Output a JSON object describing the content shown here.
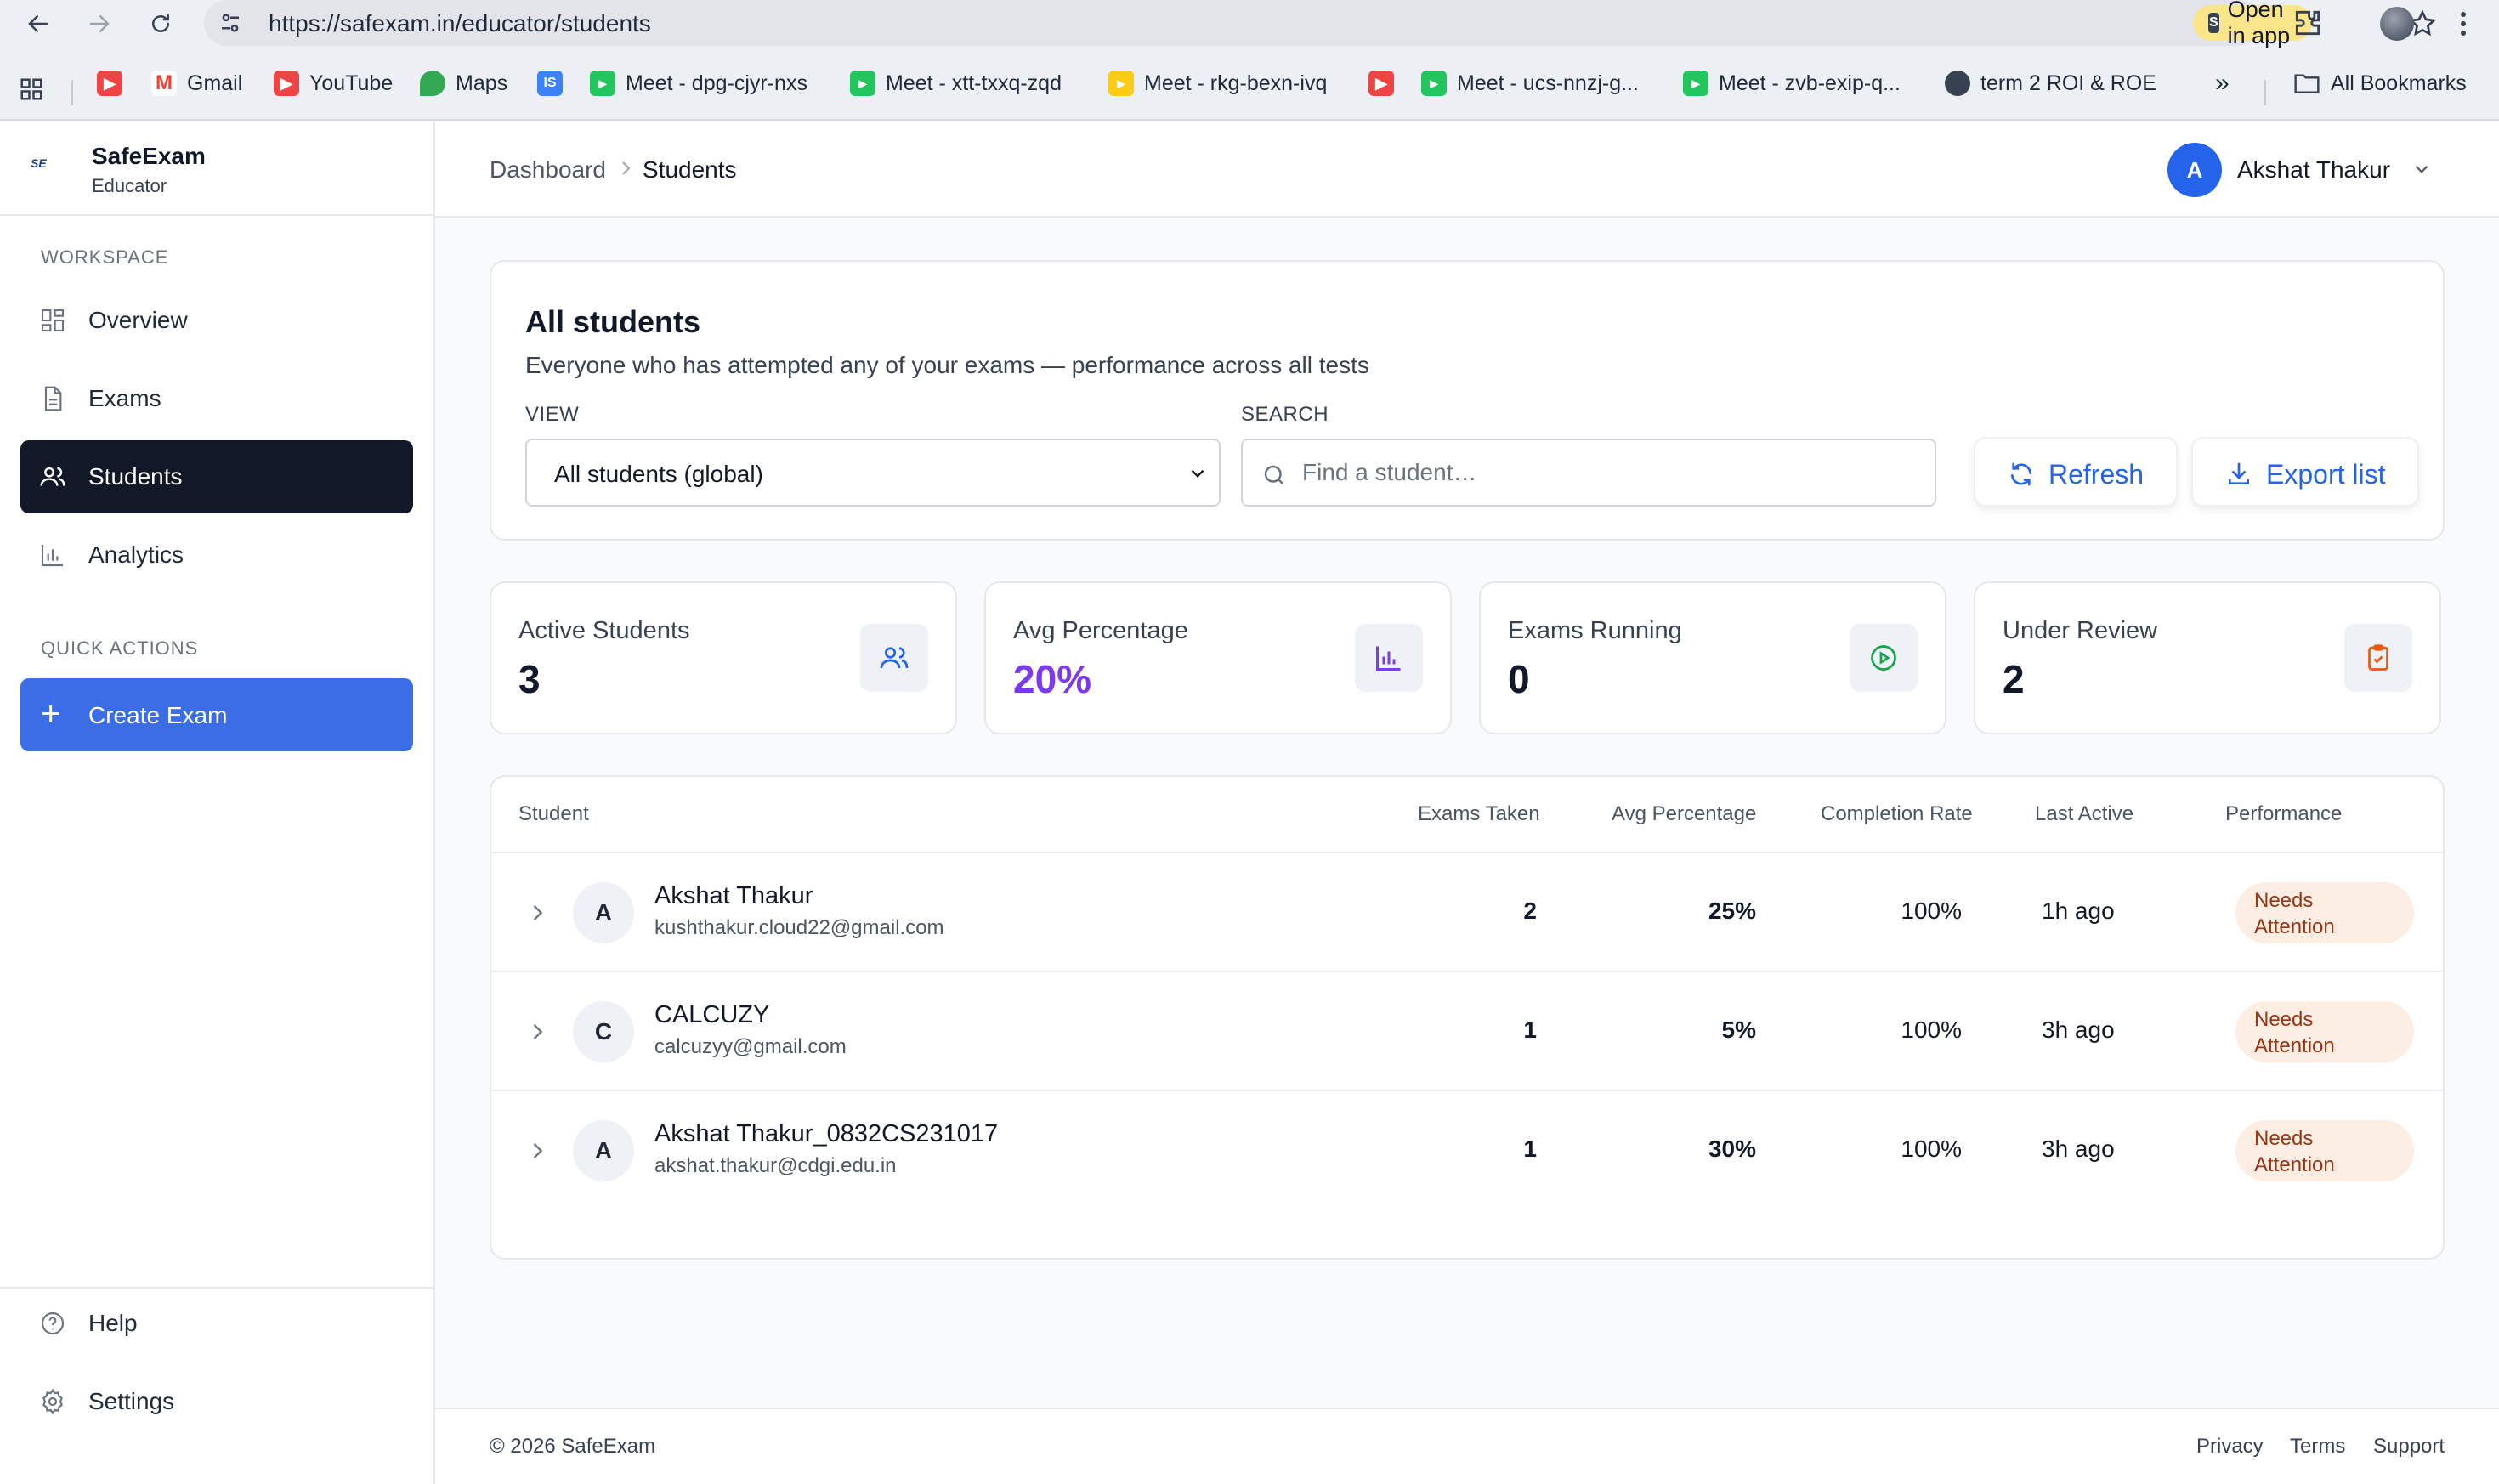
{
  "browser": {
    "url": "https://safexam.in/educator/students",
    "open_in_app": "Open in app",
    "bookmarks": [
      {
        "label": ""
      },
      {
        "label": "Gmail"
      },
      {
        "label": "YouTube"
      },
      {
        "label": "Maps"
      },
      {
        "label": ""
      },
      {
        "label": "Meet - dpg-cjyr-nxs"
      },
      {
        "label": "Meet - xtt-txxq-zqd"
      },
      {
        "label": "Meet - rkg-bexn-ivq"
      },
      {
        "label": ""
      },
      {
        "label": "Meet - ucs-nnzj-g..."
      },
      {
        "label": "Meet - zvb-exip-q..."
      },
      {
        "label": "term 2 ROI & ROE"
      }
    ],
    "all_bookmarks": "All Bookmarks"
  },
  "sidebar": {
    "brand": "SafeExam",
    "role": "Educator",
    "workspace_label": "WORKSPACE",
    "items": [
      {
        "label": "Overview",
        "icon": "grid-icon"
      },
      {
        "label": "Exams",
        "icon": "document-icon"
      },
      {
        "label": "Students",
        "icon": "users-icon",
        "active": true
      },
      {
        "label": "Analytics",
        "icon": "bar-chart-icon"
      }
    ],
    "quick_actions_label": "QUICK ACTIONS",
    "create_exam": "Create Exam",
    "help": "Help",
    "settings": "Settings"
  },
  "header": {
    "breadcrumb": [
      "Dashboard",
      "Students"
    ],
    "user_initial": "A",
    "user_name": "Akshat Thakur"
  },
  "filters": {
    "title": "All students",
    "subtitle": "Everyone who has attempted any of your exams — performance across all tests",
    "view_label": "VIEW",
    "view_value": "All students (global)",
    "search_label": "SEARCH",
    "search_placeholder": "Find a student…",
    "refresh": "Refresh",
    "export": "Export list"
  },
  "stats": [
    {
      "label": "Active Students",
      "value": "3",
      "icon": "users-icon",
      "icon_color": "#2563eb"
    },
    {
      "label": "Avg Percentage",
      "value": "20%",
      "icon": "bar-chart-icon",
      "icon_color": "#7c3aed"
    },
    {
      "label": "Exams Running",
      "value": "0",
      "icon": "play-circle-icon",
      "icon_color": "#16a34a"
    },
    {
      "label": "Under Review",
      "value": "2",
      "icon": "clipboard-check-icon",
      "icon_color": "#ea580c"
    }
  ],
  "table": {
    "columns": [
      "Student",
      "Exams Taken",
      "Avg Percentage",
      "Completion Rate",
      "Last Active",
      "Performance"
    ],
    "rows": [
      {
        "initial": "A",
        "name": "Akshat Thakur",
        "email": "kushthakur.cloud22@gmail.com",
        "exams": "2",
        "avg": "25%",
        "completion": "100%",
        "last_active": "1h ago",
        "performance": "Needs Attention"
      },
      {
        "initial": "C",
        "name": "CALCUZY",
        "email": "calcuzyy@gmail.com",
        "exams": "1",
        "avg": "5%",
        "completion": "100%",
        "last_active": "3h ago",
        "performance": "Needs Attention"
      },
      {
        "initial": "A",
        "name": "Akshat Thakur_0832CS231017",
        "email": "akshat.thakur@cdgi.edu.in",
        "exams": "1",
        "avg": "30%",
        "completion": "100%",
        "last_active": "3h ago",
        "performance": "Needs Attention"
      }
    ]
  },
  "footer": {
    "copyright": "© 2026 SafeExam",
    "links": [
      "Privacy",
      "Terms",
      "Support"
    ]
  }
}
